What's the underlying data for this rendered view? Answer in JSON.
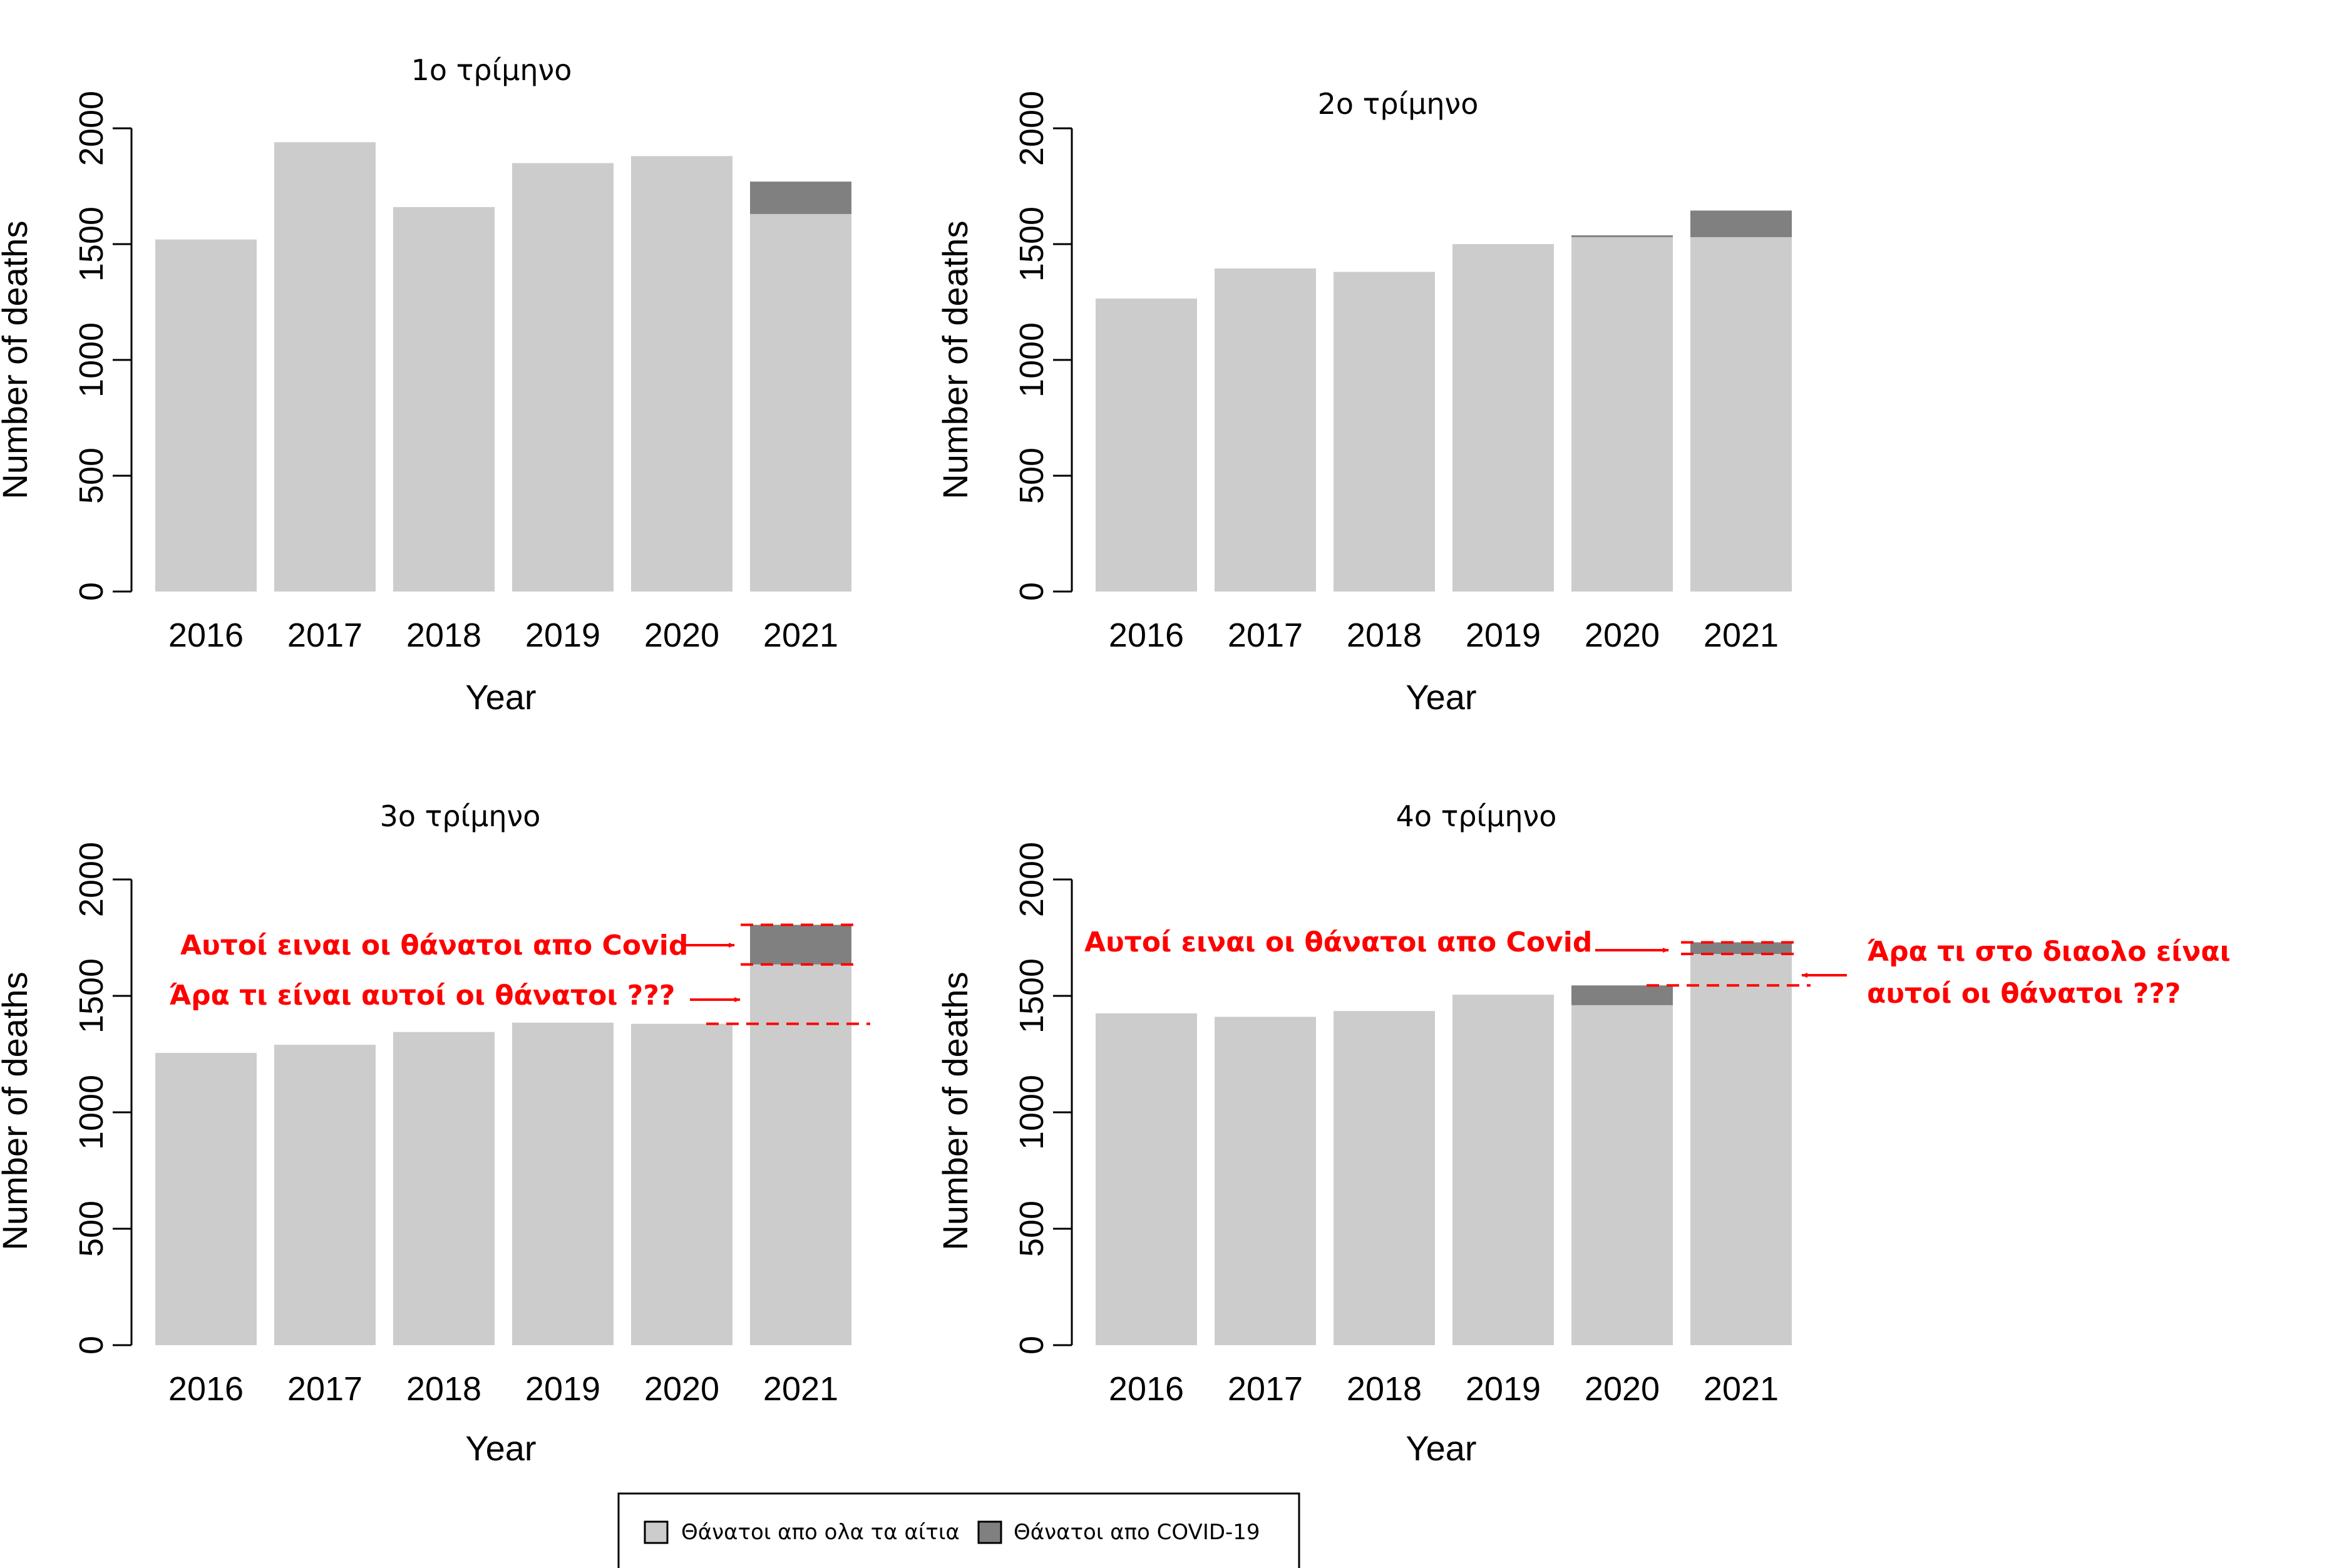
{
  "chart_data": [
    {
      "type": "bar",
      "stacked": true,
      "title": "1ο τρίμηνο",
      "xlabel": "Year",
      "ylabel": "Number of deaths",
      "ylim": [
        0,
        2000
      ],
      "yticks": [
        0,
        500,
        1000,
        1500,
        2000
      ],
      "categories": [
        "2016",
        "2017",
        "2018",
        "2019",
        "2020",
        "2021"
      ],
      "series": [
        {
          "name": "Θάνατοι απο ολα τα αίτια",
          "values": [
            1520,
            1940,
            1660,
            1850,
            1880,
            1630
          ]
        },
        {
          "name": "Θάνατοι απο COVID-19",
          "values": [
            0,
            0,
            0,
            0,
            0,
            140
          ]
        }
      ]
    },
    {
      "type": "bar",
      "stacked": true,
      "title": "2ο τρίμηνο",
      "xlabel": "Year",
      "ylabel": "Number of deaths",
      "ylim": [
        0,
        2000
      ],
      "yticks": [
        0,
        500,
        1000,
        1500,
        2000
      ],
      "categories": [
        "2016",
        "2017",
        "2018",
        "2019",
        "2020",
        "2021"
      ],
      "series": [
        {
          "name": "Θάνατοι απο ολα τα αίτια",
          "values": [
            1265,
            1395,
            1380,
            1500,
            1530,
            1530
          ]
        },
        {
          "name": "Θάνατοι απο COVID-19",
          "values": [
            0,
            0,
            0,
            0,
            8,
            115
          ]
        }
      ]
    },
    {
      "type": "bar",
      "stacked": true,
      "title": "3ο τρίμηνο",
      "xlabel": "Year",
      "ylabel": "Number of deaths",
      "ylim": [
        0,
        2000
      ],
      "yticks": [
        0,
        500,
        1000,
        1500,
        2000
      ],
      "categories": [
        "2016",
        "2017",
        "2018",
        "2019",
        "2020",
        "2021"
      ],
      "series": [
        {
          "name": "Θάνατοι απο ολα τα αίτια",
          "values": [
            1255,
            1290,
            1345,
            1385,
            1380,
            1635
          ]
        },
        {
          "name": "Θάνατοι απο COVID-19",
          "values": [
            0,
            0,
            0,
            0,
            0,
            170
          ]
        }
      ],
      "annotations": {
        "color": "#ff0000",
        "texts": [
          "Αυτοί ειναι οι θάνατοι απο Covid",
          "Άρα τι είναι αυτοί οι θάνατοι ???"
        ],
        "reference_lines": [
          1805,
          1635,
          1380
        ]
      }
    },
    {
      "type": "bar",
      "stacked": true,
      "title": "4ο τρίμηνο",
      "xlabel": "Year",
      "ylabel": "Number of deaths",
      "ylim": [
        0,
        2000
      ],
      "yticks": [
        0,
        500,
        1000,
        1500,
        2000
      ],
      "categories": [
        "2016",
        "2017",
        "2018",
        "2019",
        "2020",
        "2021"
      ],
      "series": [
        {
          "name": "Θάνατοι απο ολα τα αίτια",
          "values": [
            1425,
            1410,
            1435,
            1505,
            1460,
            1680
          ]
        },
        {
          "name": "Θάνατοι απο COVID-19",
          "values": [
            0,
            0,
            0,
            0,
            85,
            50
          ]
        }
      ],
      "annotations": {
        "color": "#ff0000",
        "texts": [
          "Αυτοί ειναι οι θάνατοι απο Covid",
          "Άρα τι στο διαολο είναι",
          "αυτοί οι θάνατοι ???"
        ],
        "reference_lines": [
          1730,
          1680,
          1545
        ]
      }
    }
  ],
  "legend": {
    "entries": [
      "Θάνατοι απο ολα τα αίτια",
      "Θάνατοι απο COVID-19"
    ]
  },
  "colors": {
    "all_causes": "#cccccc",
    "covid": "#808080",
    "annotation": "#ff0000",
    "axis": "#000000"
  }
}
